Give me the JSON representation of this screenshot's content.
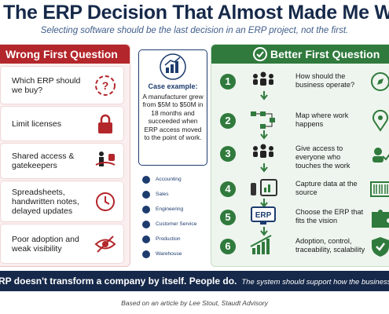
{
  "header": {
    "title": "The ERP Decision That Almost Made Me Walk Awa",
    "subtitle": "Selecting software should be the last decision in an ERP project, not the first."
  },
  "left_panel": {
    "heading": "Wrong First Question",
    "items": [
      "Which ERP should we buy?",
      "Limit licenses",
      "Shared access & gatekeepers",
      "Spreadsheets, handwritten notes, delayed updates",
      "Poor adoption and weak visibility"
    ]
  },
  "case": {
    "title": "Case example:",
    "body": "A manufacturer grew from $5M to $50M in 18 months and succeeded when ERP access moved to the point of work.",
    "departments": [
      "Accounting",
      "Sales",
      "Engineering",
      "Customer Service",
      "Production",
      "Warehouse"
    ]
  },
  "right_panel": {
    "heading": "Better First Question",
    "steps": [
      {
        "number": "1",
        "text": "How should the business operate?"
      },
      {
        "number": "2",
        "text": "Map where work happens"
      },
      {
        "number": "3",
        "text": "Give access to everyone who touches the work"
      },
      {
        "number": "4",
        "text": "Capture data at the source"
      },
      {
        "number": "5",
        "text": "Choose the ERP that fits the vision",
        "badge": "ERP"
      },
      {
        "number": "6",
        "text": "Adoption, control, traceability, scalability"
      }
    ]
  },
  "footer": {
    "banner_bold": "RP doesn't transform a company by itself. People do.",
    "banner_italic": "The system should support how the business needs",
    "credit": "Based on an article by Lee Stout, Staudt Advisory"
  }
}
